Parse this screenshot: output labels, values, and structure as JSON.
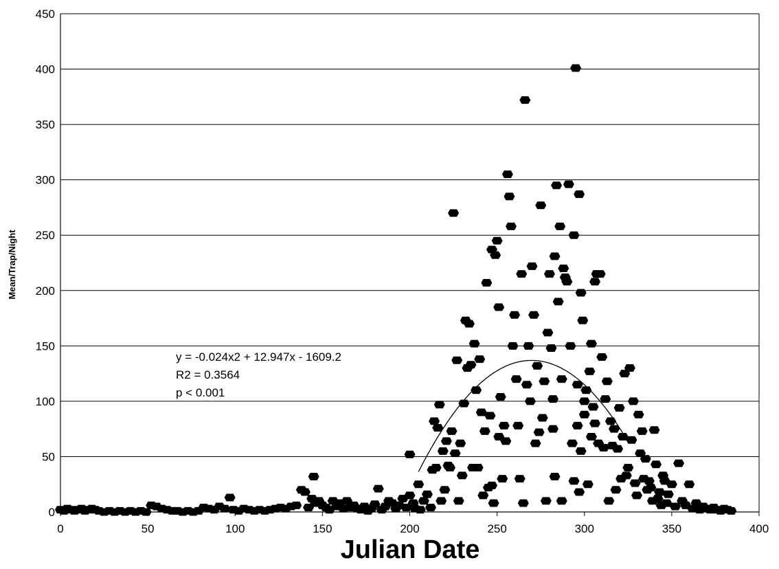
{
  "chart_data": {
    "type": "scatter",
    "xlabel": "Julian Date",
    "ylabel": "Mean/Trap/Night",
    "xlim": [
      0,
      400
    ],
    "ylim": [
      0,
      450
    ],
    "xticks": [
      0,
      50,
      100,
      150,
      200,
      250,
      300,
      350,
      400
    ],
    "yticks": [
      0,
      50,
      100,
      150,
      200,
      250,
      300,
      350,
      400,
      450
    ],
    "grid": "horizontal",
    "marker_color": "#000000",
    "annotation": [
      "y = -0.024x2 + 12.947x - 1609.2",
      "R2 = 0.3564",
      "p < 0.001"
    ],
    "trendline": {
      "a": -0.024,
      "b": 12.947,
      "c": -1609.2,
      "x_range": [
        205,
        325
      ]
    },
    "series": [
      {
        "points": [
          [
            0,
            2
          ],
          [
            2,
            1
          ],
          [
            4,
            3
          ],
          [
            6,
            2
          ],
          [
            8,
            1
          ],
          [
            10,
            2
          ],
          [
            12,
            3
          ],
          [
            14,
            1
          ],
          [
            16,
            2
          ],
          [
            18,
            3
          ],
          [
            20,
            2
          ],
          [
            22,
            1
          ],
          [
            25,
            0
          ],
          [
            28,
            1
          ],
          [
            31,
            0
          ],
          [
            34,
            1
          ],
          [
            37,
            0
          ],
          [
            40,
            1
          ],
          [
            43,
            0
          ],
          [
            46,
            1
          ],
          [
            49,
            0
          ],
          [
            52,
            6
          ],
          [
            55,
            5
          ],
          [
            58,
            3
          ],
          [
            61,
            2
          ],
          [
            64,
            1
          ],
          [
            67,
            1
          ],
          [
            70,
            0
          ],
          [
            73,
            1
          ],
          [
            76,
            0
          ],
          [
            79,
            1
          ],
          [
            82,
            4
          ],
          [
            85,
            3
          ],
          [
            88,
            2
          ],
          [
            91,
            5
          ],
          [
            94,
            3
          ],
          [
            97,
            13
          ],
          [
            99,
            2
          ],
          [
            102,
            1
          ],
          [
            105,
            3
          ],
          [
            108,
            2
          ],
          [
            111,
            1
          ],
          [
            114,
            2
          ],
          [
            117,
            1
          ],
          [
            120,
            2
          ],
          [
            123,
            3
          ],
          [
            126,
            4
          ],
          [
            129,
            3
          ],
          [
            132,
            5
          ],
          [
            135,
            6
          ],
          [
            138,
            20
          ],
          [
            140,
            18
          ],
          [
            142,
            4
          ],
          [
            144,
            12
          ],
          [
            145,
            32
          ],
          [
            146,
            8
          ],
          [
            148,
            10
          ],
          [
            150,
            6
          ],
          [
            152,
            4
          ],
          [
            154,
            2
          ],
          [
            156,
            10
          ],
          [
            158,
            5
          ],
          [
            160,
            8
          ],
          [
            162,
            3
          ],
          [
            164,
            10
          ],
          [
            166,
            4
          ],
          [
            168,
            6
          ],
          [
            170,
            3
          ],
          [
            172,
            2
          ],
          [
            174,
            5
          ],
          [
            176,
            1
          ],
          [
            178,
            3
          ],
          [
            180,
            7
          ],
          [
            182,
            21
          ],
          [
            184,
            2
          ],
          [
            186,
            5
          ],
          [
            188,
            10
          ],
          [
            190,
            8
          ],
          [
            192,
            3
          ],
          [
            194,
            6
          ],
          [
            196,
            12
          ],
          [
            198,
            4
          ],
          [
            200,
            15
          ],
          [
            200,
            52
          ],
          [
            202,
            8
          ],
          [
            203,
            3
          ],
          [
            205,
            25
          ],
          [
            206,
            2
          ],
          [
            208,
            10
          ],
          [
            210,
            16
          ],
          [
            212,
            4
          ],
          [
            213,
            38
          ],
          [
            214,
            82
          ],
          [
            215,
            40
          ],
          [
            216,
            76
          ],
          [
            217,
            97
          ],
          [
            218,
            10
          ],
          [
            219,
            55
          ],
          [
            220,
            20
          ],
          [
            221,
            64
          ],
          [
            222,
            42
          ],
          [
            223,
            40
          ],
          [
            224,
            73
          ],
          [
            225,
            270
          ],
          [
            226,
            53
          ],
          [
            227,
            137
          ],
          [
            228,
            10
          ],
          [
            229,
            62
          ],
          [
            230,
            33
          ],
          [
            231,
            98
          ],
          [
            232,
            173
          ],
          [
            233,
            130
          ],
          [
            234,
            170
          ],
          [
            235,
            133
          ],
          [
            236,
            40
          ],
          [
            237,
            152
          ],
          [
            238,
            110
          ],
          [
            239,
            40
          ],
          [
            240,
            138
          ],
          [
            241,
            90
          ],
          [
            242,
            15
          ],
          [
            243,
            73
          ],
          [
            244,
            207
          ],
          [
            245,
            22
          ],
          [
            246,
            87
          ],
          [
            247,
            237
          ],
          [
            247,
            24
          ],
          [
            248,
            8
          ],
          [
            249,
            232
          ],
          [
            250,
            245
          ],
          [
            251,
            185
          ],
          [
            251,
            68
          ],
          [
            252,
            104
          ],
          [
            253,
            30
          ],
          [
            254,
            78
          ],
          [
            255,
            64
          ],
          [
            256,
            305
          ],
          [
            257,
            285
          ],
          [
            258,
            258
          ],
          [
            259,
            150
          ],
          [
            260,
            178
          ],
          [
            261,
            120
          ],
          [
            262,
            78
          ],
          [
            263,
            30
          ],
          [
            264,
            215
          ],
          [
            265,
            8
          ],
          [
            266,
            372
          ],
          [
            267,
            115
          ],
          [
            268,
            150
          ],
          [
            269,
            100
          ],
          [
            270,
            222
          ],
          [
            271,
            178
          ],
          [
            272,
            62
          ],
          [
            273,
            132
          ],
          [
            274,
            72
          ],
          [
            275,
            277
          ],
          [
            276,
            85
          ],
          [
            277,
            118
          ],
          [
            278,
            10
          ],
          [
            279,
            162
          ],
          [
            280,
            215
          ],
          [
            281,
            148
          ],
          [
            282,
            102
          ],
          [
            282,
            75
          ],
          [
            283,
            231
          ],
          [
            283,
            32
          ],
          [
            284,
            295
          ],
          [
            285,
            190
          ],
          [
            286,
            258
          ],
          [
            287,
            120
          ],
          [
            287,
            10
          ],
          [
            288,
            220
          ],
          [
            289,
            212
          ],
          [
            290,
            208
          ],
          [
            291,
            296
          ],
          [
            292,
            150
          ],
          [
            293,
            62
          ],
          [
            294,
            250
          ],
          [
            294,
            28
          ],
          [
            295,
            401
          ],
          [
            296,
            78
          ],
          [
            296,
            115
          ],
          [
            297,
            287
          ],
          [
            297,
            18
          ],
          [
            298,
            198
          ],
          [
            298,
            55
          ],
          [
            299,
            173
          ],
          [
            300,
            88
          ],
          [
            300,
            100
          ],
          [
            301,
            110
          ],
          [
            302,
            25
          ],
          [
            303,
            127
          ],
          [
            304,
            152
          ],
          [
            304,
            68
          ],
          [
            305,
            95
          ],
          [
            306,
            208
          ],
          [
            306,
            80
          ],
          [
            307,
            215
          ],
          [
            308,
            62
          ],
          [
            309,
            215
          ],
          [
            310,
            140
          ],
          [
            311,
            58
          ],
          [
            312,
            102
          ],
          [
            313,
            118
          ],
          [
            314,
            10
          ],
          [
            315,
            82
          ],
          [
            316,
            60
          ],
          [
            317,
            75
          ],
          [
            318,
            20
          ],
          [
            319,
            57
          ],
          [
            320,
            94
          ],
          [
            321,
            30
          ],
          [
            322,
            68
          ],
          [
            323,
            125
          ],
          [
            324,
            33
          ],
          [
            325,
            40
          ],
          [
            326,
            130
          ],
          [
            327,
            65
          ],
          [
            328,
            100
          ],
          [
            329,
            26
          ],
          [
            330,
            15
          ],
          [
            331,
            88
          ],
          [
            332,
            53
          ],
          [
            333,
            73
          ],
          [
            334,
            30
          ],
          [
            335,
            48
          ],
          [
            336,
            20
          ],
          [
            337,
            28
          ],
          [
            338,
            22
          ],
          [
            339,
            10
          ],
          [
            340,
            74
          ],
          [
            341,
            43
          ],
          [
            342,
            12
          ],
          [
            343,
            18
          ],
          [
            344,
            6
          ],
          [
            345,
            33
          ],
          [
            346,
            28
          ],
          [
            347,
            8
          ],
          [
            348,
            16
          ],
          [
            350,
            25
          ],
          [
            352,
            5
          ],
          [
            354,
            44
          ],
          [
            356,
            10
          ],
          [
            358,
            6
          ],
          [
            360,
            25
          ],
          [
            362,
            3
          ],
          [
            364,
            8
          ],
          [
            366,
            2
          ],
          [
            368,
            5
          ],
          [
            370,
            3
          ],
          [
            372,
            2
          ],
          [
            374,
            4
          ],
          [
            376,
            2
          ],
          [
            378,
            1
          ],
          [
            380,
            3
          ],
          [
            382,
            2
          ],
          [
            384,
            1
          ]
        ]
      }
    ]
  }
}
